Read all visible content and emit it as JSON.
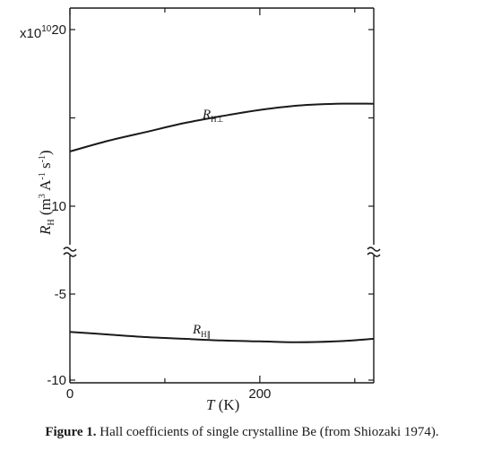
{
  "chart_data": {
    "type": "line",
    "xlabel": "T (K)",
    "ylabel": "RH (m3 A-1 s-1)",
    "y_scale_multiplier": "x10^10",
    "xlim": [
      0,
      320
    ],
    "x_ticks": [
      0,
      200
    ],
    "x_tick_labels": [
      "0",
      "200"
    ],
    "y_upper_range": [
      10,
      20
    ],
    "y_upper_ticks": [
      {
        "value": 20,
        "label": "20"
      },
      {
        "value": 10,
        "label": "10"
      }
    ],
    "y_lower_range": [
      -10,
      -5
    ],
    "y_lower_ticks": [
      {
        "value": -5,
        "label": "-5"
      },
      {
        "value": -10,
        "label": "-10"
      }
    ],
    "axis_break": true,
    "series": [
      {
        "name": "RH⊥",
        "x": [
          0,
          40,
          80,
          120,
          160,
          200,
          240,
          280,
          320
        ],
        "values": [
          13.1,
          13.7,
          14.2,
          14.7,
          15.1,
          15.45,
          15.7,
          15.8,
          15.8
        ]
      },
      {
        "name": "RH∥",
        "x": [
          0,
          40,
          80,
          120,
          160,
          200,
          240,
          280,
          320
        ],
        "values": [
          -7.2,
          -7.35,
          -7.5,
          -7.6,
          -7.7,
          -7.75,
          -7.8,
          -7.75,
          -7.6
        ]
      }
    ],
    "caption_label": "Figure 1.",
    "caption_text": "Hall coefficients of single crystalline Be (from Shiozaki 1974).",
    "grid": false
  }
}
